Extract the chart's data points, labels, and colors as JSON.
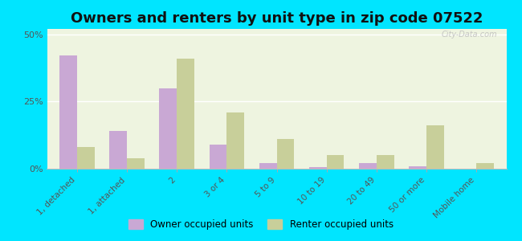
{
  "title": "Owners and renters by unit type in zip code 07522",
  "categories": [
    "1, detached",
    "1, attached",
    "2",
    "3 or 4",
    "5 to 9",
    "10 to 19",
    "20 to 49",
    "50 or more",
    "Mobile home"
  ],
  "owner_values": [
    42,
    14,
    30,
    9,
    2,
    0.5,
    2,
    1,
    0
  ],
  "renter_values": [
    8,
    4,
    41,
    21,
    11,
    5,
    5,
    16,
    2
  ],
  "owner_color": "#c9a8d4",
  "renter_color": "#c8cf9a",
  "bg_outer": "#00e5ff",
  "bg_plot": "#eef4e0",
  "title_fontsize": 13,
  "ylim": [
    0,
    52
  ],
  "yticks": [
    0,
    25,
    50
  ],
  "legend_labels": [
    "Owner occupied units",
    "Renter occupied units"
  ],
  "watermark": "City-Data.com"
}
